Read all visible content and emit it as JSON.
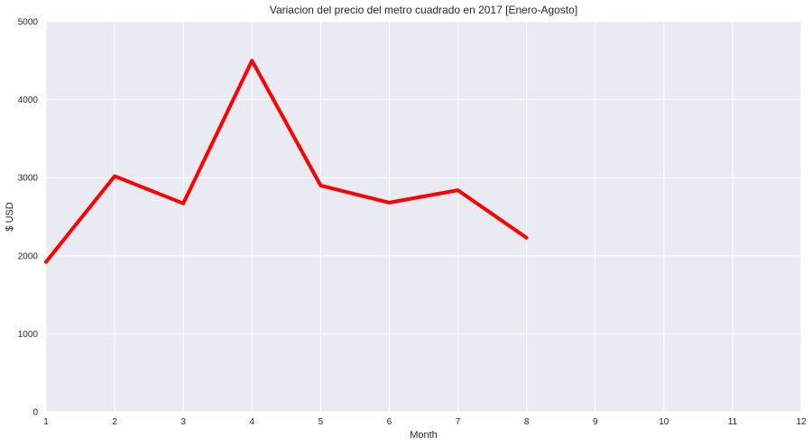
{
  "chart_data": {
    "type": "line",
    "title": "Variacion del precio del metro cuadrado en 2017 [Enero-Agosto]",
    "xlabel": "Month",
    "ylabel": "$ USD",
    "xlim": [
      1,
      12
    ],
    "ylim": [
      0,
      5000
    ],
    "xticks": [
      "1",
      "2",
      "3",
      "4",
      "5",
      "6",
      "7",
      "8",
      "9",
      "10",
      "11",
      "12"
    ],
    "yticks": [
      "0",
      "1000",
      "2000",
      "3000",
      "4000",
      "5000"
    ],
    "grid": true,
    "legend": "none",
    "colors": {
      "background": "#eaeaf2",
      "grid": "#ffffff",
      "line": "#ff0000"
    },
    "series": [
      {
        "x": [
          1,
          2,
          3,
          4,
          5,
          6,
          7,
          8
        ],
        "values": [
          1920,
          3020,
          2670,
          4500,
          2900,
          2680,
          2840,
          2230
        ]
      }
    ]
  }
}
